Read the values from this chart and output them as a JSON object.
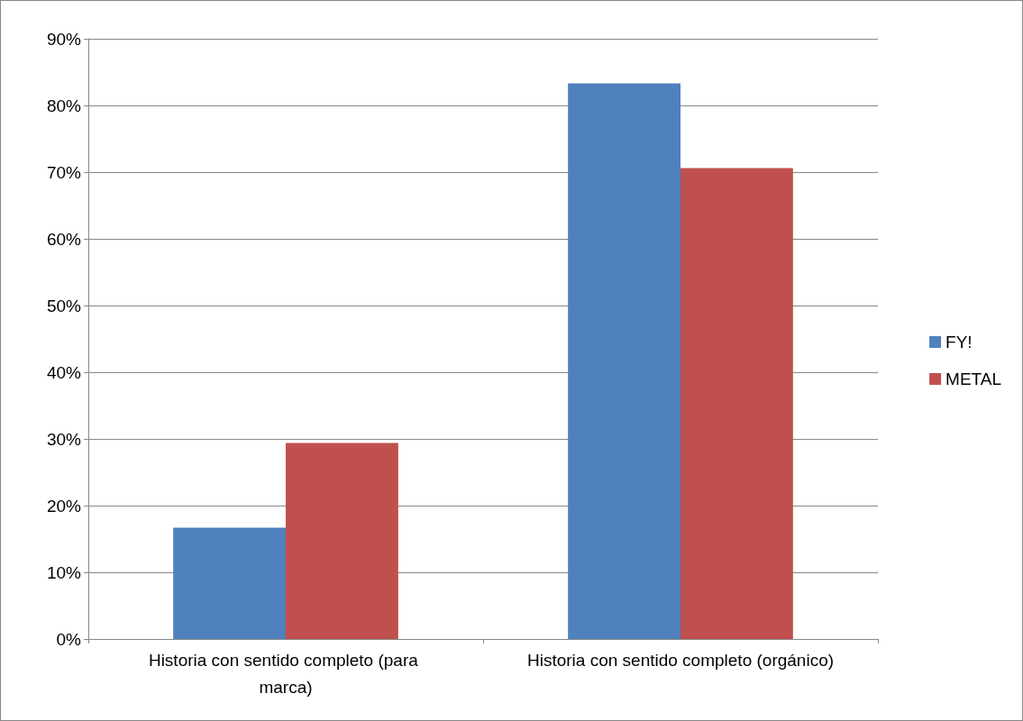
{
  "chart_data": {
    "type": "bar",
    "categories": [
      "Historia con sentido completo (para marca)",
      "Historia con sentido completo (orgánico)"
    ],
    "series": [
      {
        "name": "FY!",
        "color": "#4f81bd",
        "values": [
          16.7,
          83.3
        ]
      },
      {
        "name": "METAL",
        "color": "#c0504d",
        "values": [
          29.4,
          70.6
        ]
      }
    ],
    "ylim": [
      0,
      90
    ],
    "yticks": [
      {
        "value": 0,
        "label": "0%"
      },
      {
        "value": 10,
        "label": "10%"
      },
      {
        "value": 20,
        "label": "20%"
      },
      {
        "value": 30,
        "label": "30%"
      },
      {
        "value": 40,
        "label": "40%"
      },
      {
        "value": 50,
        "label": "50%"
      },
      {
        "value": 60,
        "label": "60%"
      },
      {
        "value": 70,
        "label": "70%"
      },
      {
        "value": 80,
        "label": "80%"
      },
      {
        "value": 90,
        "label": "90%"
      }
    ],
    "grid": "y",
    "legend": "right"
  }
}
